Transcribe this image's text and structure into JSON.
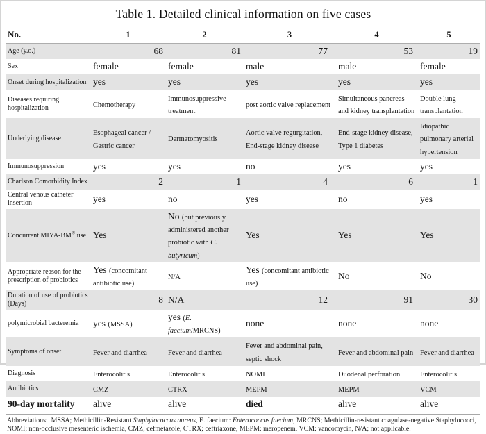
{
  "title": "Table 1. Detailed clinical information on five cases",
  "colors": {
    "row_shade": "#e3e3e3"
  },
  "header": {
    "label": "No.",
    "cases": [
      "1",
      "2",
      "3",
      "4",
      "5"
    ]
  },
  "rows": [
    {
      "label": "Age (y.o.)",
      "shaded": true,
      "cells": [
        {
          "a": "r",
          "s": [
            [
              "68",
              "lg"
            ]
          ]
        },
        {
          "a": "r",
          "s": [
            [
              "81",
              "lg"
            ]
          ]
        },
        {
          "a": "r",
          "s": [
            [
              "77",
              "lg"
            ]
          ]
        },
        {
          "a": "r",
          "s": [
            [
              "53",
              "lg"
            ]
          ]
        },
        {
          "a": "r",
          "s": [
            [
              "19",
              "lg"
            ]
          ]
        }
      ]
    },
    {
      "label": "Sex",
      "shaded": false,
      "cells": [
        {
          "s": [
            [
              "female",
              "lg"
            ]
          ]
        },
        {
          "s": [
            [
              "female",
              "lg"
            ]
          ]
        },
        {
          "s": [
            [
              "male",
              "lg"
            ]
          ]
        },
        {
          "s": [
            [
              "male",
              "lg"
            ]
          ]
        },
        {
          "s": [
            [
              "female",
              "lg"
            ]
          ]
        }
      ]
    },
    {
      "label": "Onset during hospitalization",
      "shaded": true,
      "cells": [
        {
          "s": [
            [
              "yes",
              "lg"
            ]
          ]
        },
        {
          "s": [
            [
              "yes",
              "lg"
            ]
          ]
        },
        {
          "s": [
            [
              "yes",
              "lg"
            ]
          ]
        },
        {
          "s": [
            [
              "yes",
              "lg"
            ]
          ]
        },
        {
          "s": [
            [
              "yes",
              "lg"
            ]
          ]
        }
      ]
    },
    {
      "label": "Diseases requiring hospitalization",
      "shaded": false,
      "cells": [
        {
          "s": [
            [
              "Chemotherapy",
              "sm"
            ]
          ]
        },
        {
          "s": [
            [
              "Immunosuppressive treatment",
              "sm"
            ]
          ]
        },
        {
          "s": [
            [
              "post aortic valve replacement",
              "sm"
            ]
          ]
        },
        {
          "s": [
            [
              "Simultaneous pancreas and kidney transplantation",
              "sm"
            ]
          ]
        },
        {
          "s": [
            [
              "Double lung transplantation",
              "sm"
            ]
          ]
        }
      ]
    },
    {
      "label": "Underlying disease",
      "shaded": true,
      "cells": [
        {
          "s": [
            [
              "Esophageal cancer / Gastric cancer",
              "sm"
            ]
          ]
        },
        {
          "s": [
            [
              "Dermatomyositis",
              "sm"
            ]
          ]
        },
        {
          "s": [
            [
              "Aortic valve regurgitation, End-stage kidney disease",
              "sm"
            ]
          ]
        },
        {
          "s": [
            [
              "End-stage kidney disease, Type 1 diabetes",
              "sm"
            ]
          ]
        },
        {
          "s": [
            [
              "Idiopathic pulmonary arterial hypertension",
              "sm"
            ]
          ]
        }
      ]
    },
    {
      "label": "Immunosuppression",
      "shaded": false,
      "cells": [
        {
          "s": [
            [
              "yes",
              "lg"
            ]
          ]
        },
        {
          "s": [
            [
              "yes",
              "lg"
            ]
          ]
        },
        {
          "s": [
            [
              "no",
              "lg"
            ]
          ]
        },
        {
          "s": [
            [
              "yes",
              "lg"
            ]
          ]
        },
        {
          "s": [
            [
              "yes",
              "lg"
            ]
          ]
        }
      ]
    },
    {
      "label": "Charlson Comorbidity Index",
      "shaded": true,
      "cells": [
        {
          "a": "r",
          "s": [
            [
              "2",
              "lg"
            ]
          ]
        },
        {
          "a": "r",
          "s": [
            [
              "1",
              "lg"
            ]
          ]
        },
        {
          "a": "r",
          "s": [
            [
              "4",
              "lg"
            ]
          ]
        },
        {
          "a": "r",
          "s": [
            [
              "6",
              "lg"
            ]
          ]
        },
        {
          "a": "r",
          "s": [
            [
              "1",
              "lg"
            ]
          ]
        }
      ]
    },
    {
      "label": "Central venous catheter insertion",
      "shaded": false,
      "cells": [
        {
          "s": [
            [
              "yes",
              "lg"
            ]
          ]
        },
        {
          "s": [
            [
              "no",
              "lg"
            ]
          ]
        },
        {
          "s": [
            [
              "yes",
              "lg"
            ]
          ]
        },
        {
          "s": [
            [
              "no",
              "lg"
            ]
          ]
        },
        {
          "s": [
            [
              "yes",
              "lg"
            ]
          ]
        }
      ]
    },
    {
      "label": "Concurrent MIYA-BM® use",
      "shaded": true,
      "cells": [
        {
          "s": [
            [
              "Yes",
              "lg"
            ]
          ]
        },
        {
          "s": [
            [
              "No ",
              "lg"
            ],
            [
              "(but previously administered another probiotic with ",
              "sm"
            ],
            [
              "C. butyricum",
              "smi"
            ],
            [
              ")",
              "sm"
            ]
          ]
        },
        {
          "s": [
            [
              "Yes",
              "lg"
            ]
          ]
        },
        {
          "s": [
            [
              "Yes",
              "lg"
            ]
          ]
        },
        {
          "s": [
            [
              "Yes",
              "lg"
            ]
          ]
        }
      ]
    },
    {
      "label": "Appropriate reason for the prescription of probiotics",
      "shaded": false,
      "cells": [
        {
          "s": [
            [
              "Yes ",
              "lg"
            ],
            [
              "(concomitant antibiotic use)",
              "sm"
            ]
          ]
        },
        {
          "s": [
            [
              "N/A",
              "sm"
            ]
          ]
        },
        {
          "s": [
            [
              "Yes ",
              "lg"
            ],
            [
              "(concomitant antibiotic use)",
              "sm"
            ]
          ]
        },
        {
          "s": [
            [
              "No",
              "lg"
            ]
          ]
        },
        {
          "s": [
            [
              "No",
              "lg"
            ]
          ]
        }
      ]
    },
    {
      "label": "Duration of use of probiotics (Days)",
      "shaded": true,
      "cells": [
        {
          "a": "r",
          "s": [
            [
              "8",
              "lg"
            ]
          ]
        },
        {
          "s": [
            [
              "N/A",
              "lg"
            ]
          ]
        },
        {
          "a": "r",
          "s": [
            [
              "12",
              "lg"
            ]
          ]
        },
        {
          "a": "r",
          "s": [
            [
              "91",
              "lg"
            ]
          ]
        },
        {
          "a": "r",
          "s": [
            [
              "30",
              "lg"
            ]
          ]
        }
      ]
    },
    {
      "label": "polymicrobial bacteremia",
      "shaded": false,
      "cells": [
        {
          "s": [
            [
              "yes ",
              "lg"
            ],
            [
              "(MSSA)",
              "sm"
            ]
          ]
        },
        {
          "s": [
            [
              "yes ",
              "lg"
            ],
            [
              "(",
              "sm"
            ],
            [
              "E. faecium",
              "smi"
            ],
            [
              "/MRCNS)",
              "sm"
            ]
          ]
        },
        {
          "s": [
            [
              "none",
              "lg"
            ]
          ]
        },
        {
          "s": [
            [
              "none",
              "lg"
            ]
          ]
        },
        {
          "s": [
            [
              "none",
              "lg"
            ]
          ]
        }
      ]
    },
    {
      "label": "Symptoms of onset",
      "shaded": true,
      "cells": [
        {
          "s": [
            [
              "Fever and diarrhea",
              "sm"
            ]
          ]
        },
        {
          "s": [
            [
              "Fever and diarrhea",
              "sm"
            ]
          ]
        },
        {
          "s": [
            [
              "Fever and abdominal pain, septic shock",
              "sm"
            ]
          ]
        },
        {
          "s": [
            [
              "Fever and abdominal pain",
              "sm"
            ]
          ]
        },
        {
          "s": [
            [
              "Fever and diarrhea",
              "sm"
            ]
          ]
        }
      ]
    },
    {
      "label": "Diagnosis",
      "shaded": false,
      "cells": [
        {
          "s": [
            [
              "Enterocolitis",
              "sm"
            ]
          ]
        },
        {
          "s": [
            [
              "Enterocolitis",
              "sm"
            ]
          ]
        },
        {
          "s": [
            [
              "NOMI",
              "sm"
            ]
          ]
        },
        {
          "s": [
            [
              "Duodenal perforation",
              "sm"
            ]
          ]
        },
        {
          "s": [
            [
              "Enterocolitis",
              "sm"
            ]
          ]
        }
      ]
    },
    {
      "label": "Antibiotics",
      "shaded": true,
      "cells": [
        {
          "s": [
            [
              "CMZ",
              "sm"
            ]
          ]
        },
        {
          "s": [
            [
              "CTRX",
              "sm"
            ]
          ]
        },
        {
          "s": [
            [
              "MEPM",
              "sm"
            ]
          ]
        },
        {
          "s": [
            [
              "MEPM",
              "sm"
            ]
          ]
        },
        {
          "s": [
            [
              "VCM",
              "sm"
            ]
          ]
        }
      ]
    },
    {
      "label": "90-day mortality",
      "shaded": false,
      "bold_label": true,
      "cells": [
        {
          "s": [
            [
              "alive",
              "lg"
            ]
          ]
        },
        {
          "s": [
            [
              "alive",
              "lg"
            ]
          ]
        },
        {
          "s": [
            [
              "died",
              "lgb"
            ]
          ]
        },
        {
          "s": [
            [
              "alive",
              "lg"
            ]
          ]
        },
        {
          "s": [
            [
              "alive",
              "lg"
            ]
          ]
        }
      ]
    }
  ],
  "footnote": {
    "segments": [
      {
        "t": "Abbreviations:  MSSA; Methicillin-Resistant "
      },
      {
        "t": "Staphylococcus aureus",
        "i": true
      },
      {
        "t": ", E. faecium: "
      },
      {
        "t": "Enterococcus faecium",
        "i": true
      },
      {
        "t": ", MRCNS; Methicillin-resistant coagulase-negative Staphylococci, NOMI; non-occlusive mesenteric ischemia, CMZ; cefmetazole, CTRX; ceftriaxone, MEPM; meropenem, VCM; vancomycin, N/A; not applicable."
      }
    ]
  }
}
